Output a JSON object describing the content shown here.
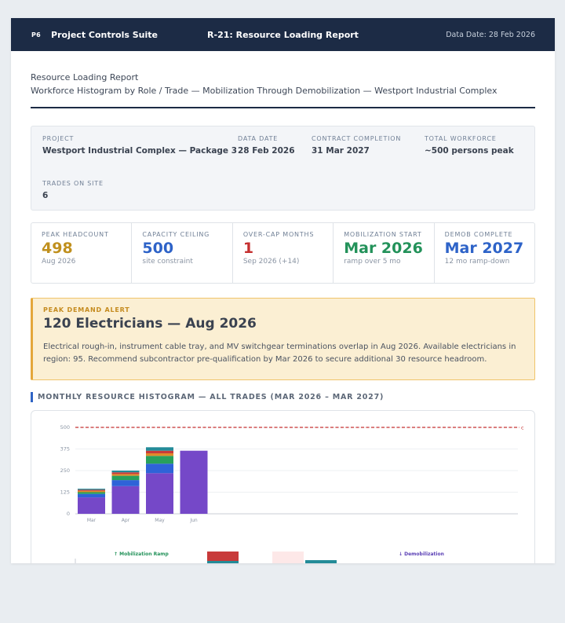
{
  "header": {
    "logo": "P6",
    "suite_name": "Project Controls Suite",
    "report_title": "R-21: Resource Loading Report",
    "data_date": "Data Date: 28 Feb 2026"
  },
  "document": {
    "title": "Resource Loading Report",
    "subtitle": "Workforce Histogram by Role / Trade — Mobilization Through Demobilization — Westport Industrial Complex"
  },
  "project_info": {
    "project": {
      "label": "PROJECT",
      "value": "Westport Industrial Complex — Package 3"
    },
    "data_date": {
      "label": "DATA DATE",
      "value": "28 Feb 2026"
    },
    "contract_completion": {
      "label": "CONTRACT COMPLETION",
      "value": "31 Mar 2027"
    },
    "total_workforce": {
      "label": "TOTAL WORKFORCE",
      "value": "~500 persons peak"
    },
    "trades_on_site": {
      "label": "TRADES ON SITE",
      "value": "6"
    }
  },
  "kpis": [
    {
      "label": "PEAK HEADCOUNT",
      "value": "498",
      "sub": "Aug 2026",
      "color": "#c0901e"
    },
    {
      "label": "CAPACITY CEILING",
      "value": "500",
      "sub": "site constraint",
      "color": "#2e63c8"
    },
    {
      "label": "OVER-CAP MONTHS",
      "value": "1",
      "sub": "Sep 2026 (+14)",
      "color": "#c53030"
    },
    {
      "label": "MOBILIZATION START",
      "value": "Mar 2026",
      "sub": "ramp over 5 mo",
      "color": "#23925a"
    },
    {
      "label": "DEMOB COMPLETE",
      "value": "Mar 2027",
      "sub": "12 mo ramp-down",
      "color": "#2e63c8"
    }
  ],
  "alert": {
    "label": "PEAK DEMAND ALERT",
    "title": "120 Electricians — Aug 2026",
    "text": "Electrical rough-in, instrument cable tray, and MV switchgear terminations overlap in Aug 2026. Available electricians in region: 95. Recommend subcontractor pre-qualification by Mar 2026 to secure additional 30 resource headroom."
  },
  "section_title": "MONTHLY RESOURCE HISTOGRAM — ALL TRADES (MAR 2026 – MAR 2027)",
  "chart_data": {
    "type": "bar",
    "stacked": true,
    "categories": [
      "Mar",
      "Apr",
      "May",
      "Jun"
    ],
    "series": [
      {
        "values": [
          95,
          160,
          235,
          365
        ],
        "color": "#7548c8"
      },
      {
        "values": [
          20,
          35,
          55,
          0
        ],
        "color": "#2e63d8"
      },
      {
        "values": [
          10,
          25,
          45,
          0
        ],
        "color": "#28a05c"
      },
      {
        "values": [
          8,
          10,
          15,
          0
        ],
        "color": "#e08a2a"
      },
      {
        "values": [
          6,
          10,
          15,
          0
        ],
        "color": "#c83a3a"
      },
      {
        "values": [
          6,
          10,
          20,
          0
        ],
        "color": "#238b98"
      }
    ],
    "yticks": [
      0,
      125,
      250,
      375,
      500
    ],
    "ylim": [
      0,
      500
    ],
    "capacity_ceiling": 500,
    "capacity_line_label": "c",
    "capacity_color": "#c53030",
    "annotations": {
      "mobilization": "↑ Mobilization Ramp",
      "demobilization": "↓ Demobilization"
    }
  }
}
